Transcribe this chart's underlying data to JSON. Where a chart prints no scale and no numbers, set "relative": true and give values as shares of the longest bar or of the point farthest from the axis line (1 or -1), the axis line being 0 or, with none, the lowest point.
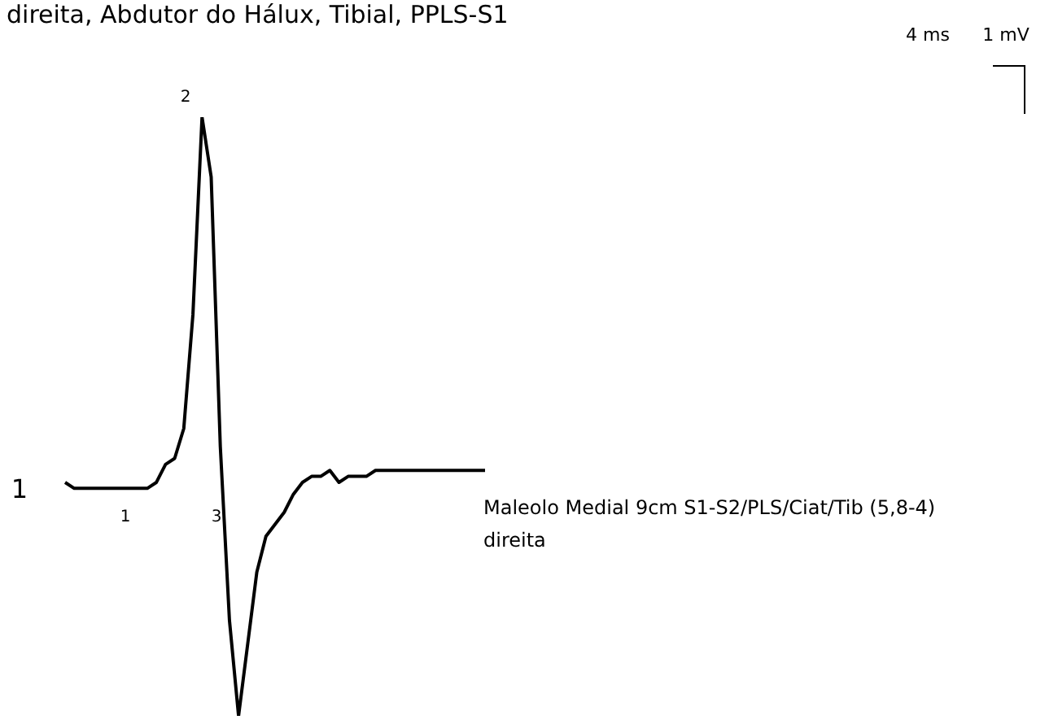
{
  "chart_data": {
    "type": "line",
    "title": "direita, Abdutor do Hálux, Tibial, PPLS-S1",
    "relative": true,
    "color": "#000000",
    "marker": "none",
    "categories": [
      null,
      null,
      null,
      null,
      null,
      null,
      null,
      null,
      null,
      null,
      null,
      null,
      null,
      null,
      null,
      null,
      null,
      null,
      null,
      null,
      null,
      null,
      null,
      null,
      null,
      null,
      null,
      null,
      null,
      null,
      null,
      null,
      null,
      null,
      null,
      null,
      null,
      null,
      null,
      null,
      null,
      null,
      null,
      null,
      null,
      null,
      null
    ],
    "values": [
      0.39,
      0.38,
      0.38,
      0.38,
      0.38,
      0.38,
      0.38,
      0.38,
      0.38,
      0.38,
      0.39,
      0.42,
      0.43,
      0.48,
      0.67,
      1,
      0.9,
      0.45,
      0.16,
      0,
      0.12,
      0.24,
      0.3,
      0.32,
      0.34,
      0.37,
      0.39,
      0.4,
      0.4,
      0.41,
      0.39,
      0.4,
      0.4,
      0.4,
      0.41,
      0.41,
      0.41,
      0.41,
      0.41,
      0.41,
      0.41,
      0.41,
      0.41,
      0.41,
      0.41,
      0.41,
      0.41
    ],
    "annotations": [
      "1",
      "2",
      "1",
      "3",
      "Maleolo Medial 9cm S1-S2/PLS/Ciat/Tib (5,8-4)\ndireita",
      "4 ms",
      "1 mV"
    ]
  }
}
